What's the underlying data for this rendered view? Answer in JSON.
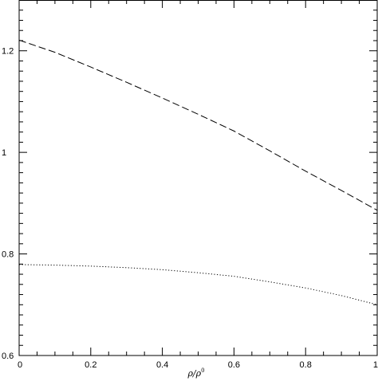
{
  "chart_data": {
    "type": "line",
    "title": "",
    "xlabel": "ρ/ρ⁰",
    "xlabel_base": "ρ/ρ",
    "xlabel_sup": "0",
    "ylabel": "",
    "xlim": [
      0,
      1
    ],
    "ylim": [
      0.6,
      1.3
    ],
    "x_ticks": [
      "0",
      "0.2",
      "0.4",
      "0.6",
      "0.8",
      "1"
    ],
    "y_ticks": [
      "0.6",
      "0.8",
      "1",
      "1.2"
    ],
    "grid": false,
    "legend": "none",
    "series": [
      {
        "style": "dashed",
        "color": "#000000",
        "x": [
          0,
          0.1,
          0.2,
          0.3,
          0.4,
          0.5,
          0.6,
          0.7,
          0.8,
          0.9,
          1.0
        ],
        "y": [
          1.221,
          1.197,
          1.168,
          1.138,
          1.107,
          1.075,
          1.042,
          1.003,
          0.963,
          0.925,
          0.886
        ]
      },
      {
        "style": "dotted",
        "color": "#000000",
        "x": [
          0,
          0.1,
          0.2,
          0.3,
          0.4,
          0.5,
          0.6,
          0.7,
          0.8,
          0.9,
          1.0
        ],
        "y": [
          0.779,
          0.778,
          0.776,
          0.773,
          0.769,
          0.763,
          0.756,
          0.745,
          0.733,
          0.718,
          0.7
        ]
      }
    ]
  }
}
